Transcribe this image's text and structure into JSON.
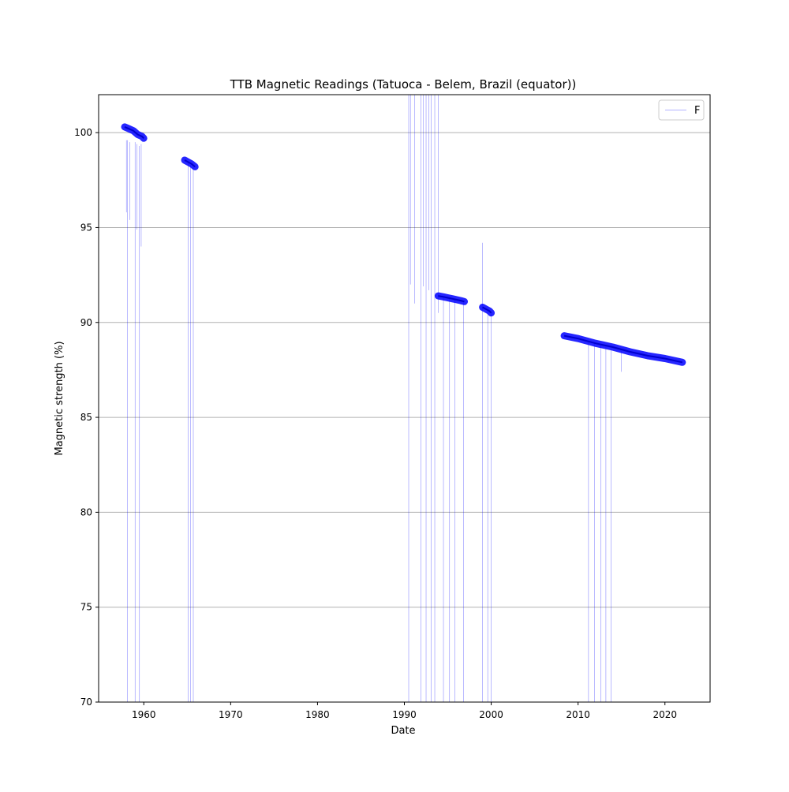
{
  "chart_data": {
    "type": "line",
    "title": "TTB Magnetic Readings (Tatuoca - Belem, Brazil (equator))",
    "xlabel": "Date",
    "ylabel": "Magnetic strength (%)",
    "xlim": [
      1954.8,
      2025.2
    ],
    "ylim": [
      70,
      102
    ],
    "xticks": [
      1960,
      1970,
      1980,
      1990,
      2000,
      2010,
      2020
    ],
    "yticks": [
      70,
      75,
      80,
      85,
      90,
      95,
      100
    ],
    "grid": "horizontal",
    "legend_position": "top-right",
    "series": [
      {
        "name": "F",
        "color": "#0000ff",
        "segments": [
          {
            "x": [
              1957.8,
              1958.3,
              1958.8,
              1959.3,
              1959.8,
              1960.0
            ],
            "y": [
              100.3,
              100.2,
              100.1,
              99.9,
              99.8,
              99.7
            ]
          },
          {
            "x": [
              1964.7,
              1965.1,
              1965.5,
              1965.9
            ],
            "y": [
              98.55,
              98.45,
              98.35,
              98.2
            ]
          },
          {
            "x": [
              1993.9,
              1994.5,
              1995.0,
              1995.5,
              1996.0,
              1996.5,
              1996.9
            ],
            "y": [
              91.4,
              91.35,
              91.3,
              91.25,
              91.2,
              91.15,
              91.1
            ]
          },
          {
            "x": [
              1999.0,
              1999.4,
              1999.8,
              2000.0
            ],
            "y": [
              90.8,
              90.7,
              90.6,
              90.5
            ]
          },
          {
            "x": [
              2008.4,
              2010,
              2012,
              2014,
              2016,
              2018,
              2020,
              2022
            ],
            "y": [
              89.3,
              89.15,
              88.9,
              88.7,
              88.45,
              88.25,
              88.1,
              87.9
            ]
          }
        ],
        "spikes": [
          {
            "x": 1958.0,
            "from": 99.6,
            "to": 95.8
          },
          {
            "x": 1958.4,
            "from": 99.5,
            "to": 95.4
          },
          {
            "x": 1959.2,
            "from": 99.4,
            "to": 94.9
          },
          {
            "x": 1959.5,
            "from": 99.3,
            "to": 70
          },
          {
            "x": 1959.7,
            "from": 99.4,
            "to": 94.0
          },
          {
            "x": 1958.1,
            "from": 99.6,
            "to": 70
          },
          {
            "x": 1959.0,
            "from": 99.5,
            "to": 70
          },
          {
            "x": 1965.1,
            "from": 98.4,
            "to": 70
          },
          {
            "x": 1965.4,
            "from": 98.3,
            "to": 70
          },
          {
            "x": 1965.7,
            "from": 98.2,
            "to": 70
          },
          {
            "x": 1990.5,
            "from": 102,
            "to": 70
          },
          {
            "x": 1990.7,
            "from": 102,
            "to": 92.0
          },
          {
            "x": 1991.2,
            "from": 102,
            "to": 91.0
          },
          {
            "x": 1991.9,
            "from": 102,
            "to": 70
          },
          {
            "x": 1992.2,
            "from": 102,
            "to": 91.9
          },
          {
            "x": 1992.5,
            "from": 102,
            "to": 70
          },
          {
            "x": 1992.8,
            "from": 102,
            "to": 91.7
          },
          {
            "x": 1993.1,
            "from": 102,
            "to": 70
          },
          {
            "x": 1993.5,
            "from": 102,
            "to": 70
          },
          {
            "x": 1993.9,
            "from": 102,
            "to": 90.5
          },
          {
            "x": 1994.5,
            "from": 91.3,
            "to": 70
          },
          {
            "x": 1995.2,
            "from": 91.3,
            "to": 70
          },
          {
            "x": 1995.8,
            "from": 91.2,
            "to": 70
          },
          {
            "x": 1996.8,
            "from": 91.1,
            "to": 70
          },
          {
            "x": 1999.0,
            "from": 94.2,
            "to": 70
          },
          {
            "x": 1999.6,
            "from": 90.7,
            "to": 70
          },
          {
            "x": 2000.0,
            "from": 90.5,
            "to": 70
          },
          {
            "x": 2011.2,
            "from": 89.0,
            "to": 70
          },
          {
            "x": 2011.9,
            "from": 88.9,
            "to": 70
          },
          {
            "x": 2012.6,
            "from": 88.8,
            "to": 70
          },
          {
            "x": 2013.2,
            "from": 88.7,
            "to": 70
          },
          {
            "x": 2013.8,
            "from": 88.6,
            "to": 70
          },
          {
            "x": 2015.0,
            "from": 88.5,
            "to": 87.4
          }
        ]
      }
    ]
  }
}
